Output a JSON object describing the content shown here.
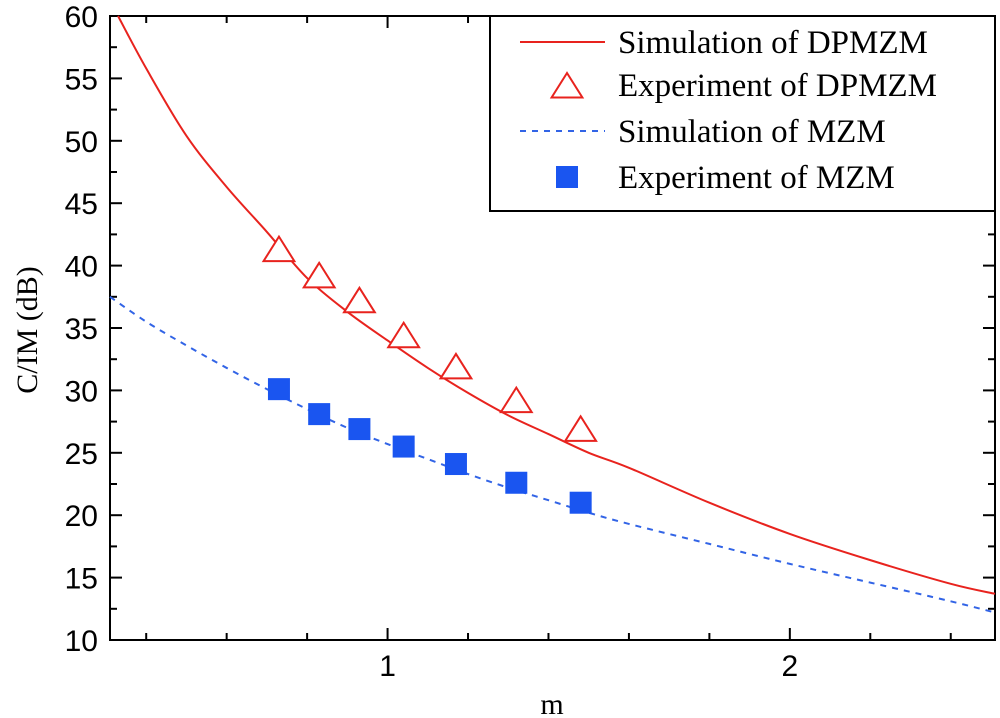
{
  "chart_data": {
    "type": "line",
    "title": "",
    "xlabel": "m",
    "ylabel": "C/IM (dB)",
    "xlim": [
      0.31,
      2.51
    ],
    "ylim": [
      10,
      60
    ],
    "xticks": [
      1,
      2
    ],
    "yticks": [
      10,
      15,
      20,
      25,
      30,
      35,
      40,
      45,
      50,
      55,
      60
    ],
    "x_minor_step": 0.2,
    "y_minor_step": 2.5,
    "grid": false,
    "legend_position": "top-right",
    "series": [
      {
        "name": "Simulation of DPMZM",
        "kind": "line",
        "style": "solid",
        "color": "#e8231e",
        "x": [
          0.33,
          0.4,
          0.5,
          0.6,
          0.7,
          0.8,
          0.9,
          1.0,
          1.1,
          1.2,
          1.3,
          1.4,
          1.5,
          1.6,
          1.8,
          2.0,
          2.2,
          2.4,
          2.51
        ],
        "y": [
          60.0,
          55.8,
          50.4,
          46.3,
          42.7,
          39.0,
          36.3,
          34.0,
          31.8,
          29.8,
          28.0,
          26.5,
          25.0,
          23.8,
          21.0,
          18.5,
          16.4,
          14.5,
          13.7
        ]
      },
      {
        "name": "Experiment of DPMZM",
        "kind": "scatter",
        "marker": "triangle",
        "color": "#e8231e",
        "x": [
          0.73,
          0.83,
          0.93,
          1.04,
          1.17,
          1.32,
          1.48
        ],
        "y": [
          41.2,
          39.1,
          37.1,
          34.3,
          31.8,
          29.1,
          26.8
        ]
      },
      {
        "name": "Simulation of MZM",
        "kind": "line",
        "style": "dashed",
        "color": "#3264e6",
        "x": [
          0.31,
          0.4,
          0.5,
          0.6,
          0.7,
          0.8,
          0.9,
          1.0,
          1.1,
          1.2,
          1.3,
          1.4,
          1.5,
          1.6,
          1.8,
          2.0,
          2.2,
          2.4,
          2.51
        ],
        "y": [
          37.5,
          35.5,
          33.6,
          31.8,
          30.1,
          28.5,
          27.0,
          25.7,
          24.5,
          23.3,
          22.2,
          21.2,
          20.2,
          19.3,
          17.7,
          16.1,
          14.6,
          13.1,
          12.2
        ]
      },
      {
        "name": "Experiment of MZM",
        "kind": "scatter",
        "marker": "square",
        "color": "#1a55f0",
        "x": [
          0.73,
          0.83,
          0.93,
          1.04,
          1.17,
          1.32,
          1.48
        ],
        "y": [
          30.1,
          28.1,
          26.9,
          25.5,
          24.1,
          22.6,
          21.0
        ]
      }
    ]
  }
}
